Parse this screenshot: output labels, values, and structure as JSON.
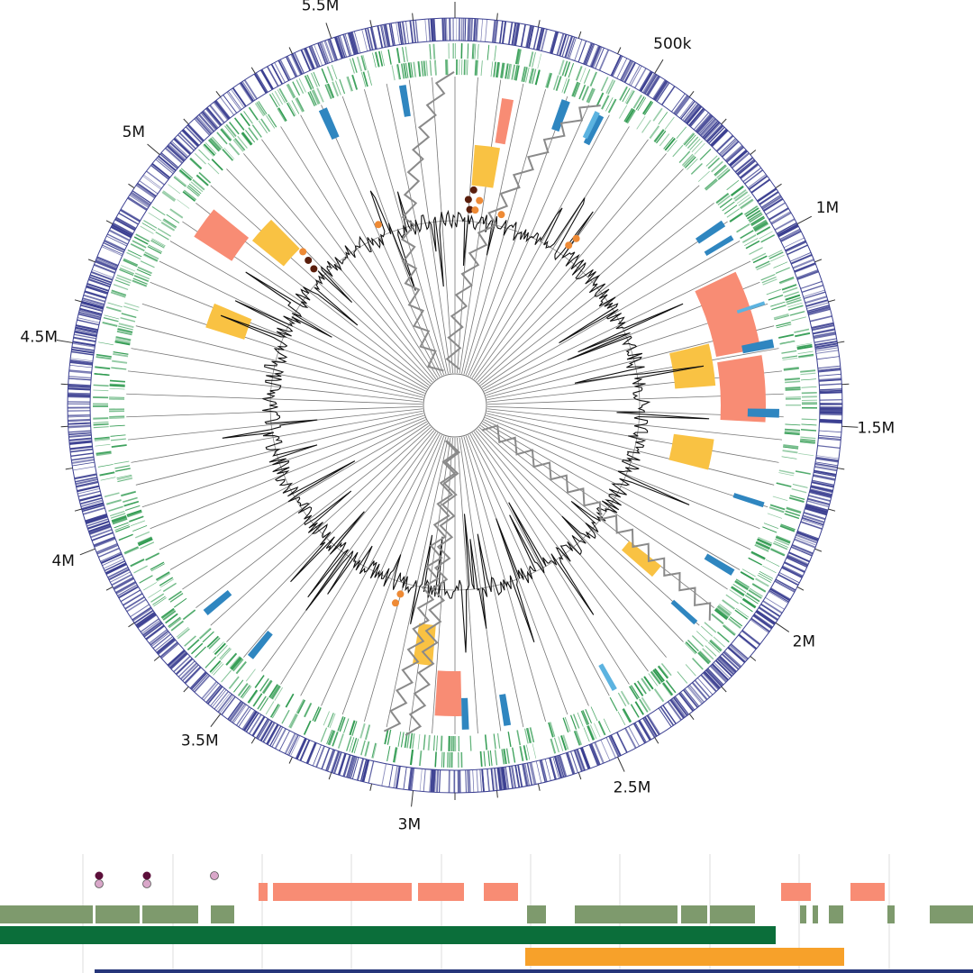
{
  "genome": {
    "length_bp": 5800000,
    "tick_labels": [
      {
        "pos": 500000,
        "label": "500k"
      },
      {
        "pos": 1000000,
        "label": "1M"
      },
      {
        "pos": 1500000,
        "label": "1.5M"
      },
      {
        "pos": 2000000,
        "label": "2M"
      },
      {
        "pos": 2500000,
        "label": "2.5M"
      },
      {
        "pos": 3000000,
        "label": "3M"
      },
      {
        "pos": 3500000,
        "label": "3.5M"
      },
      {
        "pos": 4000000,
        "label": "4M"
      },
      {
        "pos": 4500000,
        "label": "4.5M"
      },
      {
        "pos": 5000000,
        "label": "5M"
      },
      {
        "pos": 5500000,
        "label": "5.5M"
      }
    ],
    "spoke_count": 90
  },
  "colors": {
    "outer_ring": "#3b3f91",
    "gene_ring": "#2e9a4f",
    "salmon": "#f88c74",
    "gold": "#f9c243",
    "blue_bar": "#2f86c0",
    "light_blue_bar": "#5cb3e0",
    "dot_dark": "#5a1e0c",
    "dot_orange": "#ee8a35",
    "gc_line": "#111111",
    "zigzag": "#8a8a8a",
    "spoke": "#555555",
    "olive": "#7e9a6d",
    "dark_green": "#0b6e3a",
    "orange_bar": "#f7a12a",
    "navy_line": "#26367a",
    "dot_maroon": "#5c0f3a",
    "dot_pink": "#d9a7c9"
  },
  "tracks": {
    "salmon_blocks": [
      [
        1040000,
        1280000
      ],
      [
        1300000,
        1500000
      ],
      [
        2880000,
        2960000
      ],
      [
        4880000,
        4980000
      ],
      [
        140000,
        175000
      ]
    ],
    "gold_blocks": [
      [
        1230000,
        1380000
      ],
      [
        1570000,
        1680000
      ],
      [
        2060000,
        2110000
      ],
      [
        2980000,
        3050000
      ],
      [
        4630000,
        4720000
      ],
      [
        4980000,
        5080000
      ],
      [
        70000,
        160000
      ]
    ],
    "blue_bars": [
      [
        310000,
        335000
      ],
      [
        420000,
        440000
      ],
      [
        890000,
        910000
      ],
      [
        940000,
        955000
      ],
      [
        1260000,
        1285000
      ],
      [
        1460000,
        1485000
      ],
      [
        1730000,
        1745000
      ],
      [
        1940000,
        1960000
      ],
      [
        2120000,
        2135000
      ],
      [
        2740000,
        2760000
      ],
      [
        2860000,
        2880000
      ],
      [
        3520000,
        3540000
      ],
      [
        3700000,
        3720000
      ],
      [
        5400000,
        5425000
      ],
      [
        5640000,
        5660000
      ]
    ],
    "light_blue_bars": [
      [
        410000,
        425000
      ],
      [
        1150000,
        1160000
      ],
      [
        2420000,
        2435000
      ]
    ],
    "dots": [
      {
        "pos": 70000,
        "level": 0,
        "color": "dark"
      },
      {
        "pos": 60000,
        "level": 1,
        "color": "dark"
      },
      {
        "pos": 80000,
        "level": 2,
        "color": "dark"
      },
      {
        "pos": 95000,
        "level": 0,
        "color": "orange"
      },
      {
        "pos": 110000,
        "level": 1,
        "color": "orange"
      },
      {
        "pos": 220000,
        "level": 0,
        "color": "orange"
      },
      {
        "pos": 570000,
        "level": 0,
        "color": "orange"
      },
      {
        "pos": 580000,
        "level": 1,
        "color": "orange"
      },
      {
        "pos": 5060000,
        "level": 0,
        "color": "dark"
      },
      {
        "pos": 5070000,
        "level": 1,
        "color": "dark"
      },
      {
        "pos": 5080000,
        "level": 2,
        "color": "orange"
      },
      {
        "pos": 5430000,
        "level": 0,
        "color": "orange"
      },
      {
        "pos": 3160000,
        "level": 0,
        "color": "orange"
      },
      {
        "pos": 3170000,
        "level": 1,
        "color": "orange"
      }
    ],
    "zigzags": [
      [
        5350000,
        5780000
      ],
      [
        5750000,
        6200000
      ],
      [
        1980000,
        2080000
      ],
      [
        2940000,
        3020000
      ],
      [
        2980000,
        3080000
      ]
    ]
  },
  "bottom_panel": {
    "pink_dots": [
      {
        "x": 110,
        "maroon": true
      },
      {
        "x": 163,
        "maroon": true
      },
      {
        "x": 238,
        "maroon": false
      }
    ],
    "salmon_bars": [
      [
        287,
        297
      ],
      [
        303,
        457
      ],
      [
        464,
        515
      ],
      [
        537,
        575
      ],
      [
        867,
        900
      ],
      [
        944,
        982
      ]
    ],
    "olive_bars": [
      [
        0,
        103
      ],
      [
        106,
        155
      ],
      [
        158,
        220
      ],
      [
        234,
        260
      ],
      [
        585,
        606
      ],
      [
        638,
        752
      ],
      [
        756,
        785
      ],
      [
        788,
        838
      ],
      [
        888,
        895
      ],
      [
        902,
        908
      ],
      [
        920,
        936
      ],
      [
        985,
        993
      ],
      [
        1032,
        1080
      ]
    ],
    "dark_green_bar": [
      0,
      861
    ],
    "orange_bar": [
      583,
      937
    ],
    "navy_line": [
      105,
      1080
    ],
    "gridlines": [
      92,
      192,
      291,
      390,
      490,
      589,
      688,
      788,
      887,
      987
    ]
  }
}
